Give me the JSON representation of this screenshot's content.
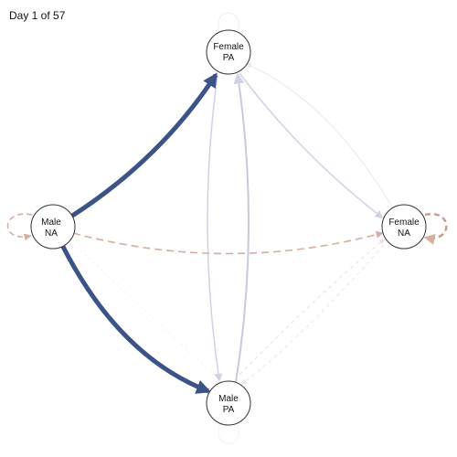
{
  "header": {
    "day_text": "Day 1 of 57"
  },
  "colors": {
    "strong_positive": "#3b5387",
    "weak_positive": "#cfd3e3",
    "faint_positive": "#e6e8f0",
    "negative": "#d5ae9f",
    "faint_negative": "#ece0da",
    "node_stroke": "#333333"
  },
  "nodes": [
    {
      "id": "female-pa",
      "line1": "Female",
      "line2": "PA"
    },
    {
      "id": "male-na",
      "line1": "Male",
      "line2": "NA"
    },
    {
      "id": "female-na",
      "line1": "Female",
      "line2": "NA"
    },
    {
      "id": "male-pa",
      "line1": "Male",
      "line2": "PA"
    }
  ]
}
